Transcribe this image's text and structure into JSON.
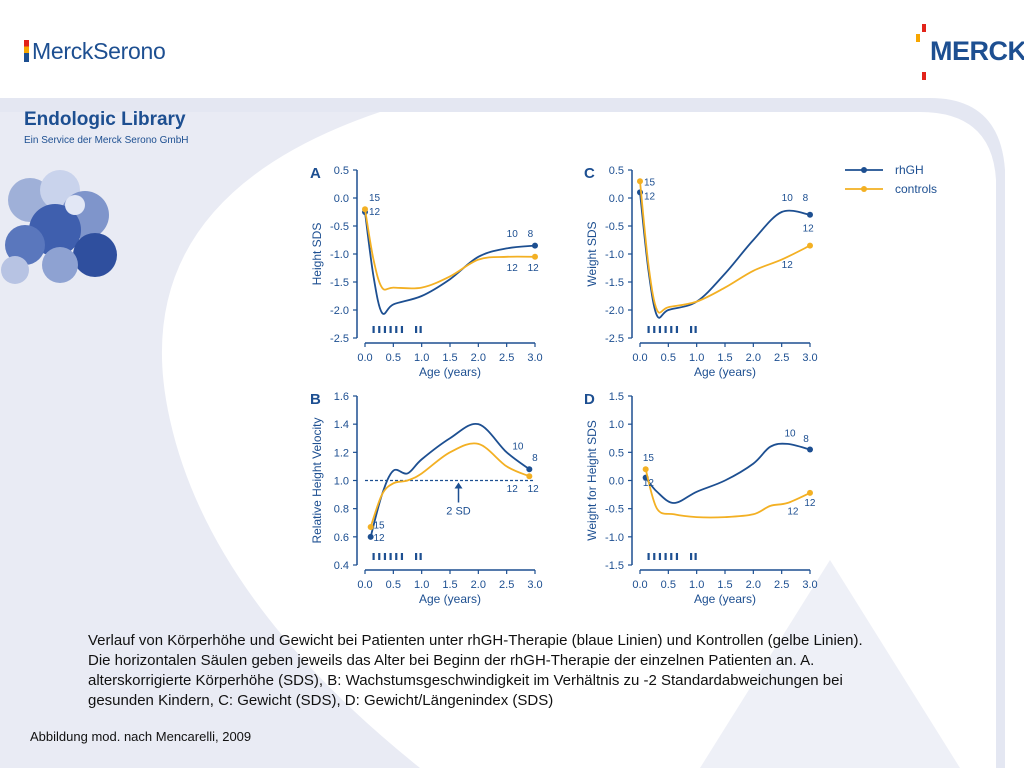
{
  "header": {
    "left_logo": "MerckSerono",
    "right_logo": "MERCK",
    "library_title": "Endologic Library",
    "library_subtitle": "Ein Service der Merck Serono GmbH"
  },
  "colors": {
    "rhGH": "#1d4f91",
    "controls": "#f3b023",
    "axis": "#1d4f91",
    "background_swoosh": "#e4e7f2"
  },
  "legend": {
    "placement": "top-right",
    "items": [
      "rhGH",
      "controls"
    ]
  },
  "chart_data": [
    {
      "panel": "A",
      "type": "line",
      "xlabel": "Age (years)",
      "ylabel": "Height SDS",
      "xlim": [
        0,
        3
      ],
      "ylim": [
        -2.5,
        0.5
      ],
      "xticks": [
        "0.0",
        "0.5",
        "1.0",
        "1.5",
        "2.0",
        "2.5",
        "3.0"
      ],
      "yticks": [
        "0.5",
        "0.0",
        "-0.5",
        "-1.0",
        "-1.5",
        "-2.0",
        "-2.5"
      ],
      "series": [
        {
          "name": "rhGH",
          "x": [
            0.0,
            0.15,
            0.3,
            0.5,
            1.0,
            1.5,
            2.0,
            2.5,
            3.0
          ],
          "y": [
            -0.25,
            -1.4,
            -2.05,
            -1.9,
            -1.75,
            -1.45,
            -1.05,
            -0.9,
            -0.85
          ]
        },
        {
          "name": "controls",
          "x": [
            0.0,
            0.15,
            0.3,
            0.5,
            1.0,
            1.5,
            2.0,
            2.5,
            3.0
          ],
          "y": [
            -0.2,
            -1.1,
            -1.6,
            -1.6,
            -1.6,
            -1.4,
            -1.1,
            -1.05,
            -1.05
          ]
        }
      ],
      "annotations": [
        {
          "text": "15",
          "x": 0.07,
          "y": -0.05
        },
        {
          "text": "12",
          "x": 0.07,
          "y": -0.3
        },
        {
          "text": "10",
          "x": 2.5,
          "y": -0.7
        },
        {
          "text": "8",
          "x": 2.87,
          "y": -0.7
        },
        {
          "text": "12",
          "x": 2.5,
          "y": -1.3
        },
        {
          "text": "12",
          "x": 2.87,
          "y": -1.3
        }
      ],
      "tick_marks_x": [
        0.15,
        0.25,
        0.35,
        0.45,
        0.55,
        0.65,
        0.9,
        0.98
      ]
    },
    {
      "panel": "C",
      "type": "line",
      "xlabel": "Age (years)",
      "ylabel": "Weight SDS",
      "xlim": [
        0,
        3
      ],
      "ylim": [
        -2.5,
        0.5
      ],
      "xticks": [
        "0.0",
        "0.5",
        "1.0",
        "1.5",
        "2.0",
        "2.5",
        "3.0"
      ],
      "yticks": [
        "0.5",
        "0.0",
        "-0.5",
        "-1.0",
        "-1.5",
        "-2.0",
        "-2.5"
      ],
      "series": [
        {
          "name": "rhGH",
          "x": [
            0.0,
            0.15,
            0.3,
            0.5,
            1.0,
            1.5,
            2.0,
            2.5,
            3.0
          ],
          "y": [
            0.1,
            -1.3,
            -2.1,
            -2.0,
            -1.85,
            -1.35,
            -0.75,
            -0.25,
            -0.3
          ]
        },
        {
          "name": "controls",
          "x": [
            0.0,
            0.15,
            0.3,
            0.5,
            1.0,
            1.5,
            2.0,
            2.5,
            3.0
          ],
          "y": [
            0.3,
            -1.2,
            -2.0,
            -1.95,
            -1.85,
            -1.6,
            -1.3,
            -1.1,
            -0.85
          ]
        }
      ],
      "annotations": [
        {
          "text": "15",
          "x": 0.07,
          "y": 0.22
        },
        {
          "text": "12",
          "x": 0.07,
          "y": -0.03
        },
        {
          "text": "10",
          "x": 2.5,
          "y": -0.05
        },
        {
          "text": "8",
          "x": 2.87,
          "y": -0.05
        },
        {
          "text": "12",
          "x": 2.87,
          "y": -0.6
        },
        {
          "text": "12",
          "x": 2.5,
          "y": -1.25
        }
      ],
      "tick_marks_x": [
        0.15,
        0.25,
        0.35,
        0.45,
        0.55,
        0.65,
        0.9,
        0.98
      ]
    },
    {
      "panel": "B",
      "type": "line",
      "xlabel": "Age (years)",
      "ylabel": "Relative Height Velocity",
      "xlim": [
        0,
        3
      ],
      "ylim": [
        0.4,
        1.6
      ],
      "xticks": [
        "0.0",
        "0.5",
        "1.0",
        "1.5",
        "2.0",
        "2.5",
        "3.0"
      ],
      "yticks": [
        "1.6",
        "1.4",
        "1.2",
        "1.0",
        "0.8",
        "0.6",
        "0.4"
      ],
      "reference_line": {
        "y": 1.0,
        "label": "2 SD",
        "x": 1.65
      },
      "series": [
        {
          "name": "rhGH",
          "x": [
            0.1,
            0.3,
            0.5,
            0.75,
            1.0,
            1.5,
            2.0,
            2.5,
            2.9
          ],
          "y": [
            0.6,
            0.9,
            1.07,
            1.05,
            1.15,
            1.3,
            1.4,
            1.2,
            1.08
          ]
        },
        {
          "name": "controls",
          "x": [
            0.1,
            0.3,
            0.5,
            0.75,
            1.0,
            1.5,
            2.0,
            2.5,
            2.9
          ],
          "y": [
            0.67,
            0.9,
            0.98,
            1.0,
            1.05,
            1.2,
            1.26,
            1.1,
            1.03
          ]
        }
      ],
      "annotations": [
        {
          "text": "15",
          "x": 0.15,
          "y": 0.66
        },
        {
          "text": "12",
          "x": 0.15,
          "y": 0.57
        },
        {
          "text": "10",
          "x": 2.6,
          "y": 1.22
        },
        {
          "text": "8",
          "x": 2.95,
          "y": 1.14
        },
        {
          "text": "12",
          "x": 2.5,
          "y": 0.92
        },
        {
          "text": "12",
          "x": 2.87,
          "y": 0.92
        }
      ],
      "tick_marks_x": [
        0.15,
        0.25,
        0.35,
        0.45,
        0.55,
        0.65,
        0.9,
        0.98
      ]
    },
    {
      "panel": "D",
      "type": "line",
      "xlabel": "Age (years)",
      "ylabel": "Weight for Height SDS",
      "xlim": [
        0,
        3
      ],
      "ylim": [
        -1.5,
        1.5
      ],
      "xticks": [
        "0.0",
        "0.5",
        "1.0",
        "1.5",
        "2.0",
        "2.5",
        "3.0"
      ],
      "yticks": [
        "1.5",
        "1.0",
        "0.5",
        "0.0",
        "-0.5",
        "-1.0",
        "-1.5"
      ],
      "series": [
        {
          "name": "rhGH",
          "x": [
            0.1,
            0.3,
            0.6,
            1.0,
            1.5,
            2.0,
            2.3,
            2.6,
            3.0
          ],
          "y": [
            0.05,
            -0.2,
            -0.4,
            -0.2,
            0.0,
            0.3,
            0.6,
            0.65,
            0.55
          ]
        },
        {
          "name": "controls",
          "x": [
            0.1,
            0.3,
            0.6,
            1.0,
            1.5,
            2.0,
            2.3,
            2.6,
            3.0
          ],
          "y": [
            0.2,
            -0.5,
            -0.6,
            -0.65,
            -0.65,
            -0.6,
            -0.45,
            -0.4,
            -0.22
          ]
        }
      ],
      "annotations": [
        {
          "text": "15",
          "x": 0.05,
          "y": 0.35
        },
        {
          "text": "12",
          "x": 0.05,
          "y": -0.1
        },
        {
          "text": "10",
          "x": 2.55,
          "y": 0.78
        },
        {
          "text": "8",
          "x": 2.88,
          "y": 0.68
        },
        {
          "text": "12",
          "x": 2.9,
          "y": -0.45
        },
        {
          "text": "12",
          "x": 2.6,
          "y": -0.6
        }
      ],
      "tick_marks_x": [
        0.15,
        0.25,
        0.35,
        0.45,
        0.55,
        0.65,
        0.9,
        0.98
      ]
    }
  ],
  "caption_lines": [
    "Verlauf von Körperhöhe und Gewicht bei Patienten unter rhGH-Therapie (blaue Linien) und Kontrollen (gelbe Linien).",
    "Die horizontalen Säulen geben jeweils das Alter bei Beginn der rhGH-Therapie der einzelnen Patienten an. A.",
    "alterskorrigierte Körperhöhe (SDS), B: Wachstumsgeschwindigkeit im Verhältnis zu -2 Standardabweichungen bei",
    "gesunden Kindern, C: Gewicht (SDS), D: Gewicht/Längenindex (SDS)"
  ],
  "source": "Abbildung mod. nach Mencarelli, 2009"
}
